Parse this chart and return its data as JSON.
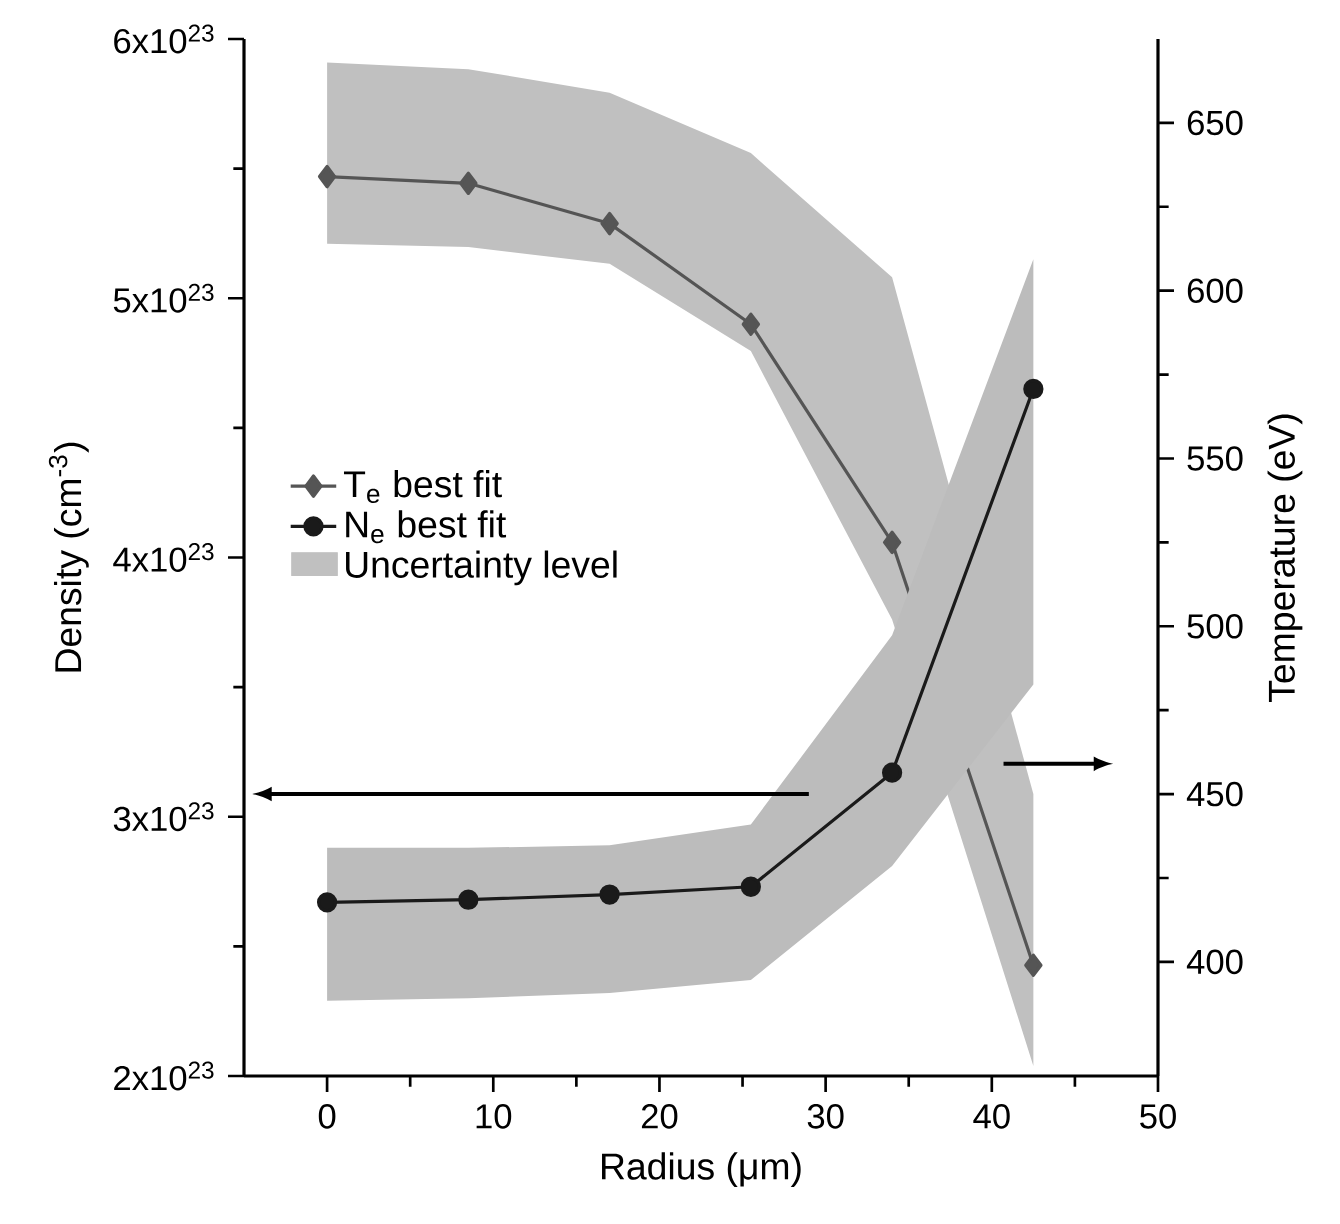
{
  "chart_data": {
    "type": "line",
    "xlabel": "Radius (μm)",
    "ylabel": "Density (cm$^{-3}$)",
    "y2label": "Temperature (eV)",
    "x": [
      0,
      8.5,
      17,
      25.5,
      34,
      42.5
    ],
    "xlim": [
      -5,
      50
    ],
    "xticks": [
      0,
      10,
      20,
      30,
      40,
      50
    ],
    "ylim": [
      2e+23,
      6e+23
    ],
    "yticks": [
      {
        "value": 2e+23,
        "label": "2x10$^{23}$"
      },
      {
        "value": 3e+23,
        "label": "3x10$^{23}$"
      },
      {
        "value": 4e+23,
        "label": "4x10$^{23}$"
      },
      {
        "value": 5e+23,
        "label": "5x10$^{23}$"
      },
      {
        "value": 6e+23,
        "label": "6x10$^{23}$"
      }
    ],
    "y2lim": [
      366,
      675
    ],
    "y2ticks": [
      400,
      450,
      500,
      550,
      600,
      650
    ],
    "legend": "left",
    "annotations": [
      "Uncertainty level"
    ],
    "series": [
      {
        "name": "T$_{e}$ best fit",
        "axis": "y2",
        "color": "#555555",
        "marker": "diamond",
        "values": [
          634,
          632,
          620,
          590,
          525,
          399
        ],
        "lower": [
          614,
          613,
          608,
          582,
          502,
          369
        ],
        "upper": [
          668,
          666,
          659,
          641,
          604,
          450
        ]
      },
      {
        "name": "N$_{e}$ best fit",
        "axis": "y",
        "color": "#1a1a1a",
        "marker": "circle",
        "values": [
          2.67e+23,
          2.68e+23,
          2.7e+23,
          2.73e+23,
          3.17e+23,
          4.65e+23
        ],
        "lower": [
          2.29e+23,
          2.3e+23,
          2.32e+23,
          2.37e+23,
          2.81e+23,
          3.51e+23
        ],
        "upper": [
          2.88e+23,
          2.88e+23,
          2.89e+23,
          2.97e+23,
          3.7e+23,
          5.15e+23
        ]
      }
    ]
  }
}
